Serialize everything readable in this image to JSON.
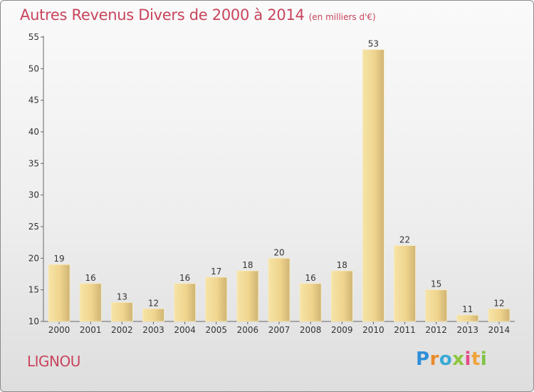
{
  "title": "Autres Revenus Divers de 2000 à 2014",
  "unit": "(en milliers d'€)",
  "commune": "LIGNOU",
  "logo_text": "Proxiti",
  "chart_data": {
    "type": "bar",
    "title": "Autres Revenus Divers de 2000 à 2014",
    "subtitle": "(en milliers d'€)",
    "categories": [
      "2000",
      "2001",
      "2002",
      "2003",
      "2004",
      "2005",
      "2006",
      "2007",
      "2008",
      "2009",
      "2010",
      "2011",
      "2012",
      "2013",
      "2014"
    ],
    "values": [
      19,
      16,
      13,
      12,
      16,
      17,
      18,
      20,
      16,
      18,
      53,
      22,
      15,
      11,
      12
    ],
    "ylim": [
      10,
      55
    ],
    "yticks": [
      10,
      15,
      20,
      25,
      30,
      35,
      40,
      45,
      50,
      55
    ],
    "grid": false,
    "colors": {
      "bar_light": "#f5df9c",
      "bar_dark": "#c9ad6c",
      "title": "#c8445c",
      "axis": "#555555",
      "text": "#333333"
    }
  }
}
